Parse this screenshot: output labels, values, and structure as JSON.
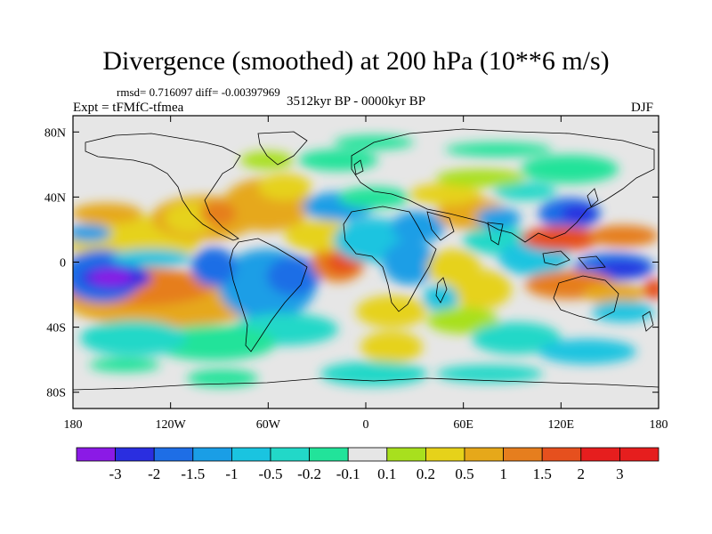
{
  "title": "Divergence (smoothed) at 200 hPa (10**6 m/s)",
  "stats": "rmsd= 0.716097 diff= -0.00397969",
  "experiment": "Expt = tFMfC-tfmea",
  "period": "3512kyr BP - 0000kyr BP",
  "season": "DJF",
  "map": {
    "lon_range": [
      -180,
      180
    ],
    "lat_range": [
      -90,
      90
    ],
    "background": "#e6e6e6",
    "lat_ticks": [
      "80N",
      "40N",
      "0",
      "40S",
      "80S"
    ],
    "lat_tick_values": [
      80,
      40,
      0,
      -40,
      -80
    ],
    "lon_ticks": [
      "180",
      "120W",
      "60W",
      "0",
      "60E",
      "120E",
      "180"
    ],
    "lon_tick_values": [
      -180,
      -120,
      -60,
      0,
      60,
      120,
      180
    ]
  },
  "colorbar": {
    "labels": [
      "-3",
      "-2",
      "-1.5",
      "-1",
      "-0.5",
      "-0.2",
      "-0.1",
      "0.1",
      "0.2",
      "0.5",
      "1",
      "1.5",
      "2",
      "3"
    ],
    "colors": [
      "#8b1ae6",
      "#2a2ee0",
      "#1e6ee6",
      "#1a9ee6",
      "#1ac4e0",
      "#22d8c8",
      "#22e39a",
      "#e6e6e6",
      "#a8e01e",
      "#e6d21a",
      "#e6a81a",
      "#e67e1e",
      "#e6501e",
      "#e61e1e",
      "#e61e1e"
    ]
  },
  "colors": {
    "land_outline": "#000000"
  }
}
